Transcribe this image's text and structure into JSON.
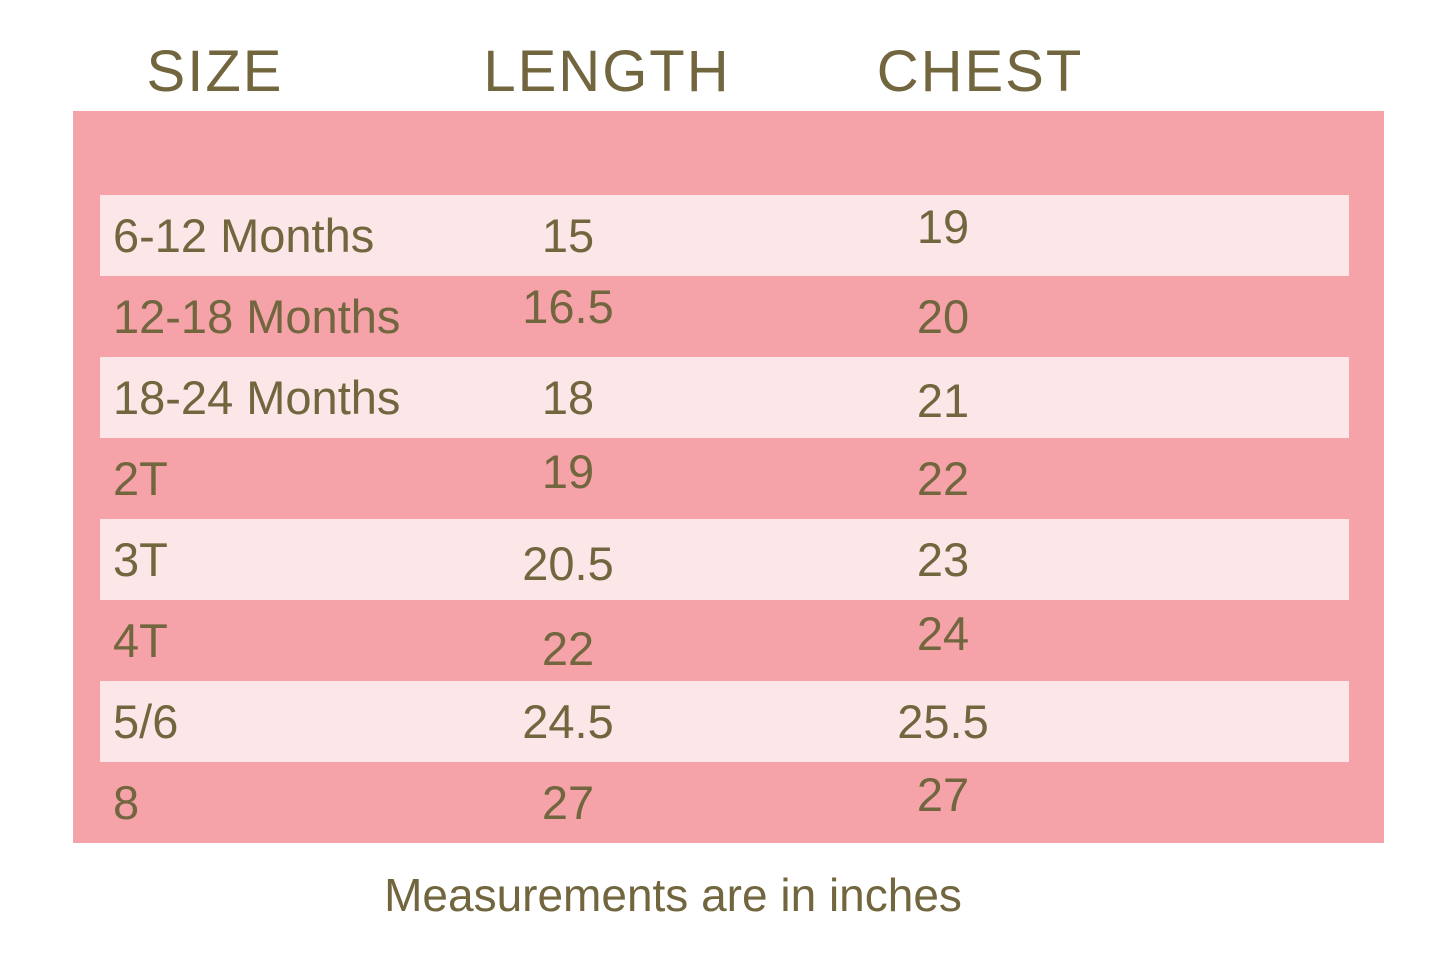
{
  "chart": {
    "headers": [
      {
        "label": "SIZE"
      },
      {
        "label": "LENGTH"
      },
      {
        "label": "CHEST"
      }
    ],
    "rows": [
      {
        "size": "6-12 Months",
        "length": "15",
        "chest": "19"
      },
      {
        "size": "12-18 Months",
        "length": "16.5",
        "chest": "20"
      },
      {
        "size": "18-24 Months",
        "length": "18",
        "chest": "21"
      },
      {
        "size": "2T",
        "length": "19",
        "chest": "22"
      },
      {
        "size": "3T",
        "length": "20.5",
        "chest": "23"
      },
      {
        "size": "4T",
        "length": "22",
        "chest": "24"
      },
      {
        "size": "5/6",
        "length": "24.5",
        "chest": "25.5"
      },
      {
        "size": "8",
        "length": "27",
        "chest": "27"
      }
    ],
    "footnote": "Measurements are in inches"
  },
  "colors": {
    "background": "#FFFFFF",
    "panel_pink": "#F5A3A8",
    "row_stripe_pink": "#FCE6E8",
    "text_olive": "#72663F"
  },
  "chart_data": {
    "type": "table",
    "title": "",
    "columns": [
      "SIZE",
      "LENGTH",
      "CHEST"
    ],
    "rows": [
      [
        "6-12 Months",
        15,
        19
      ],
      [
        "12-18 Months",
        16.5,
        20
      ],
      [
        "18-24 Months",
        18,
        21
      ],
      [
        "2T",
        19,
        22
      ],
      [
        "3T",
        20.5,
        23
      ],
      [
        "4T",
        22,
        24
      ],
      [
        "5/6",
        24.5,
        25.5
      ],
      [
        "8",
        27,
        27
      ]
    ],
    "units": "inches",
    "note": "Measurements are in inches",
    "layout": "striped rows, pale pink stripe on rows 1,3,5,7 over salmon panel"
  }
}
